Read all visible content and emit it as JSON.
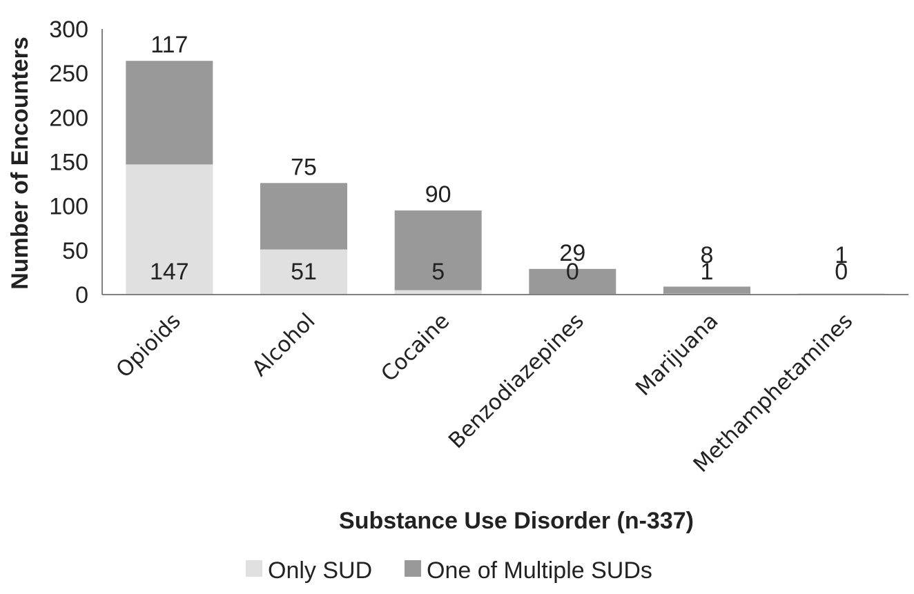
{
  "chart_data": {
    "type": "bar",
    "stacked": true,
    "categories": [
      "Opioids",
      "Alcohol",
      "Cocaine",
      "Benzodiazepines",
      "Marijuana",
      "Methamphetamines"
    ],
    "series": [
      {
        "name": "Only SUD",
        "values": [
          147,
          51,
          5,
          0,
          1,
          0
        ],
        "color": "#e0e0e0"
      },
      {
        "name": "One of Multiple SUDs",
        "values": [
          117,
          75,
          90,
          29,
          8,
          1
        ],
        "color": "#999999"
      }
    ],
    "xlabel": "Substance Use Disorder (n-337)",
    "ylabel": "Number of Encounters",
    "ylim": [
      0,
      300
    ],
    "yticks": [
      0,
      50,
      100,
      150,
      200,
      250,
      300
    ],
    "grid": false,
    "legend_position": "bottom"
  }
}
